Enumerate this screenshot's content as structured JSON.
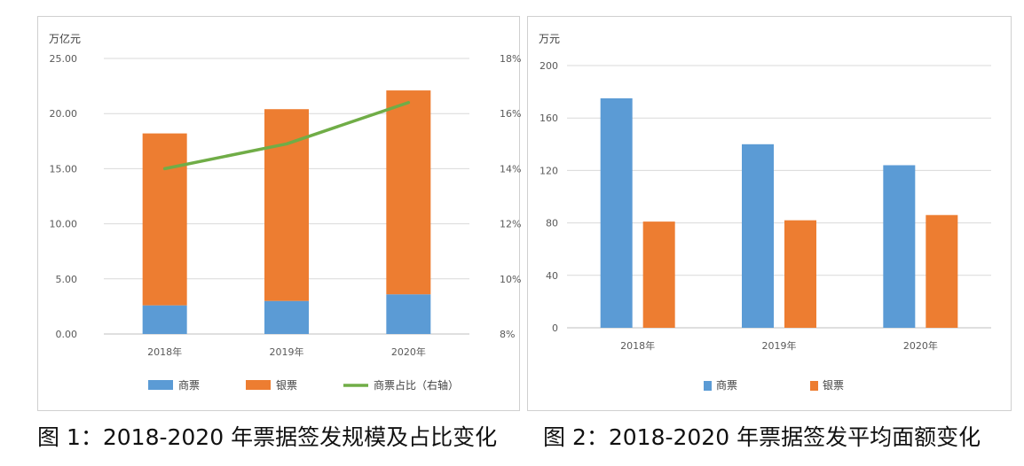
{
  "captions": {
    "fig1": "图 1：2018-2020 年票据签发规模及占比变化",
    "fig2": "图 2：2018-2020 年票据签发平均面额变化"
  },
  "colors": {
    "blue": "#5b9bd5",
    "orange": "#ed7d31",
    "green": "#70ad47",
    "grid": "#d9d9d9",
    "axis": "#bfbfbf"
  },
  "chart_data": [
    {
      "type": "bar",
      "stacked": true,
      "unit_label": "万亿元",
      "categories": [
        "2018年",
        "2019年",
        "2020年"
      ],
      "y_ticks": [
        "0.00",
        "5.00",
        "10.00",
        "15.00",
        "20.00",
        "25.00"
      ],
      "ylim": [
        0,
        25
      ],
      "y2_ticks": [
        "8%",
        "10%",
        "12%",
        "14%",
        "16%",
        "18%"
      ],
      "y2lim": [
        8,
        18
      ],
      "series": [
        {
          "name": "商票",
          "kind": "bar",
          "values": [
            2.6,
            3.0,
            3.6
          ]
        },
        {
          "name": "银票",
          "kind": "bar",
          "values": [
            15.6,
            17.4,
            18.5
          ]
        },
        {
          "name": "商票占比（右轴）",
          "kind": "line",
          "axis": "right",
          "values": [
            14.0,
            14.9,
            16.4
          ]
        }
      ],
      "grid": true,
      "legend_position": "bottom"
    },
    {
      "type": "bar",
      "stacked": false,
      "unit_label": "万元",
      "categories": [
        "2018年",
        "2019年",
        "2020年"
      ],
      "y_ticks": [
        "0",
        "40",
        "80",
        "120",
        "160",
        "200"
      ],
      "ylim": [
        0,
        200
      ],
      "series": [
        {
          "name": "商票",
          "values": [
            175,
            140,
            124
          ]
        },
        {
          "name": "银票",
          "values": [
            81,
            82,
            86
          ]
        }
      ],
      "grid": true,
      "legend_position": "bottom"
    }
  ]
}
